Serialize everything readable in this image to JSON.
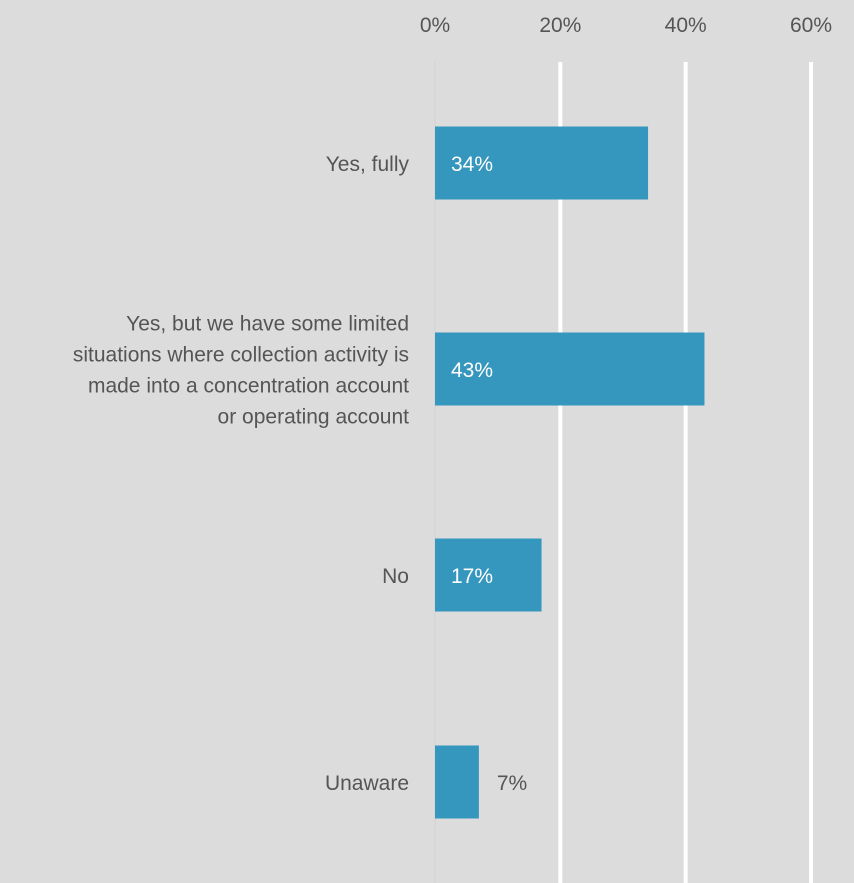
{
  "chart_data": {
    "type": "bar",
    "orientation": "horizontal",
    "categories": [
      "Yes, fully",
      "Yes, but we have some limited situations where collection activity is made into a concentration account or operating account",
      "No",
      "Unaware"
    ],
    "category_lines": [
      [
        "Yes, fully"
      ],
      [
        "Yes, but we have some limited",
        "situations where collection activity is",
        "made into a concentration account",
        "or operating account"
      ],
      [
        "No"
      ],
      [
        "Unaware"
      ]
    ],
    "values": [
      34,
      43,
      17,
      7
    ],
    "data_labels": [
      "34%",
      "43%",
      "17%",
      "7%"
    ],
    "x_ticks": [
      0,
      20,
      40,
      60
    ],
    "x_tick_labels": [
      "0%",
      "20%",
      "40%",
      "60%"
    ],
    "xlim": [
      0,
      60
    ],
    "grid": true,
    "xaxis_position": "top",
    "title": "",
    "xlabel": "",
    "ylabel": "",
    "colors": {
      "bar": "#3596be",
      "background": "#dcdcdc",
      "grid": "#ffffff",
      "text": "#555555"
    }
  }
}
